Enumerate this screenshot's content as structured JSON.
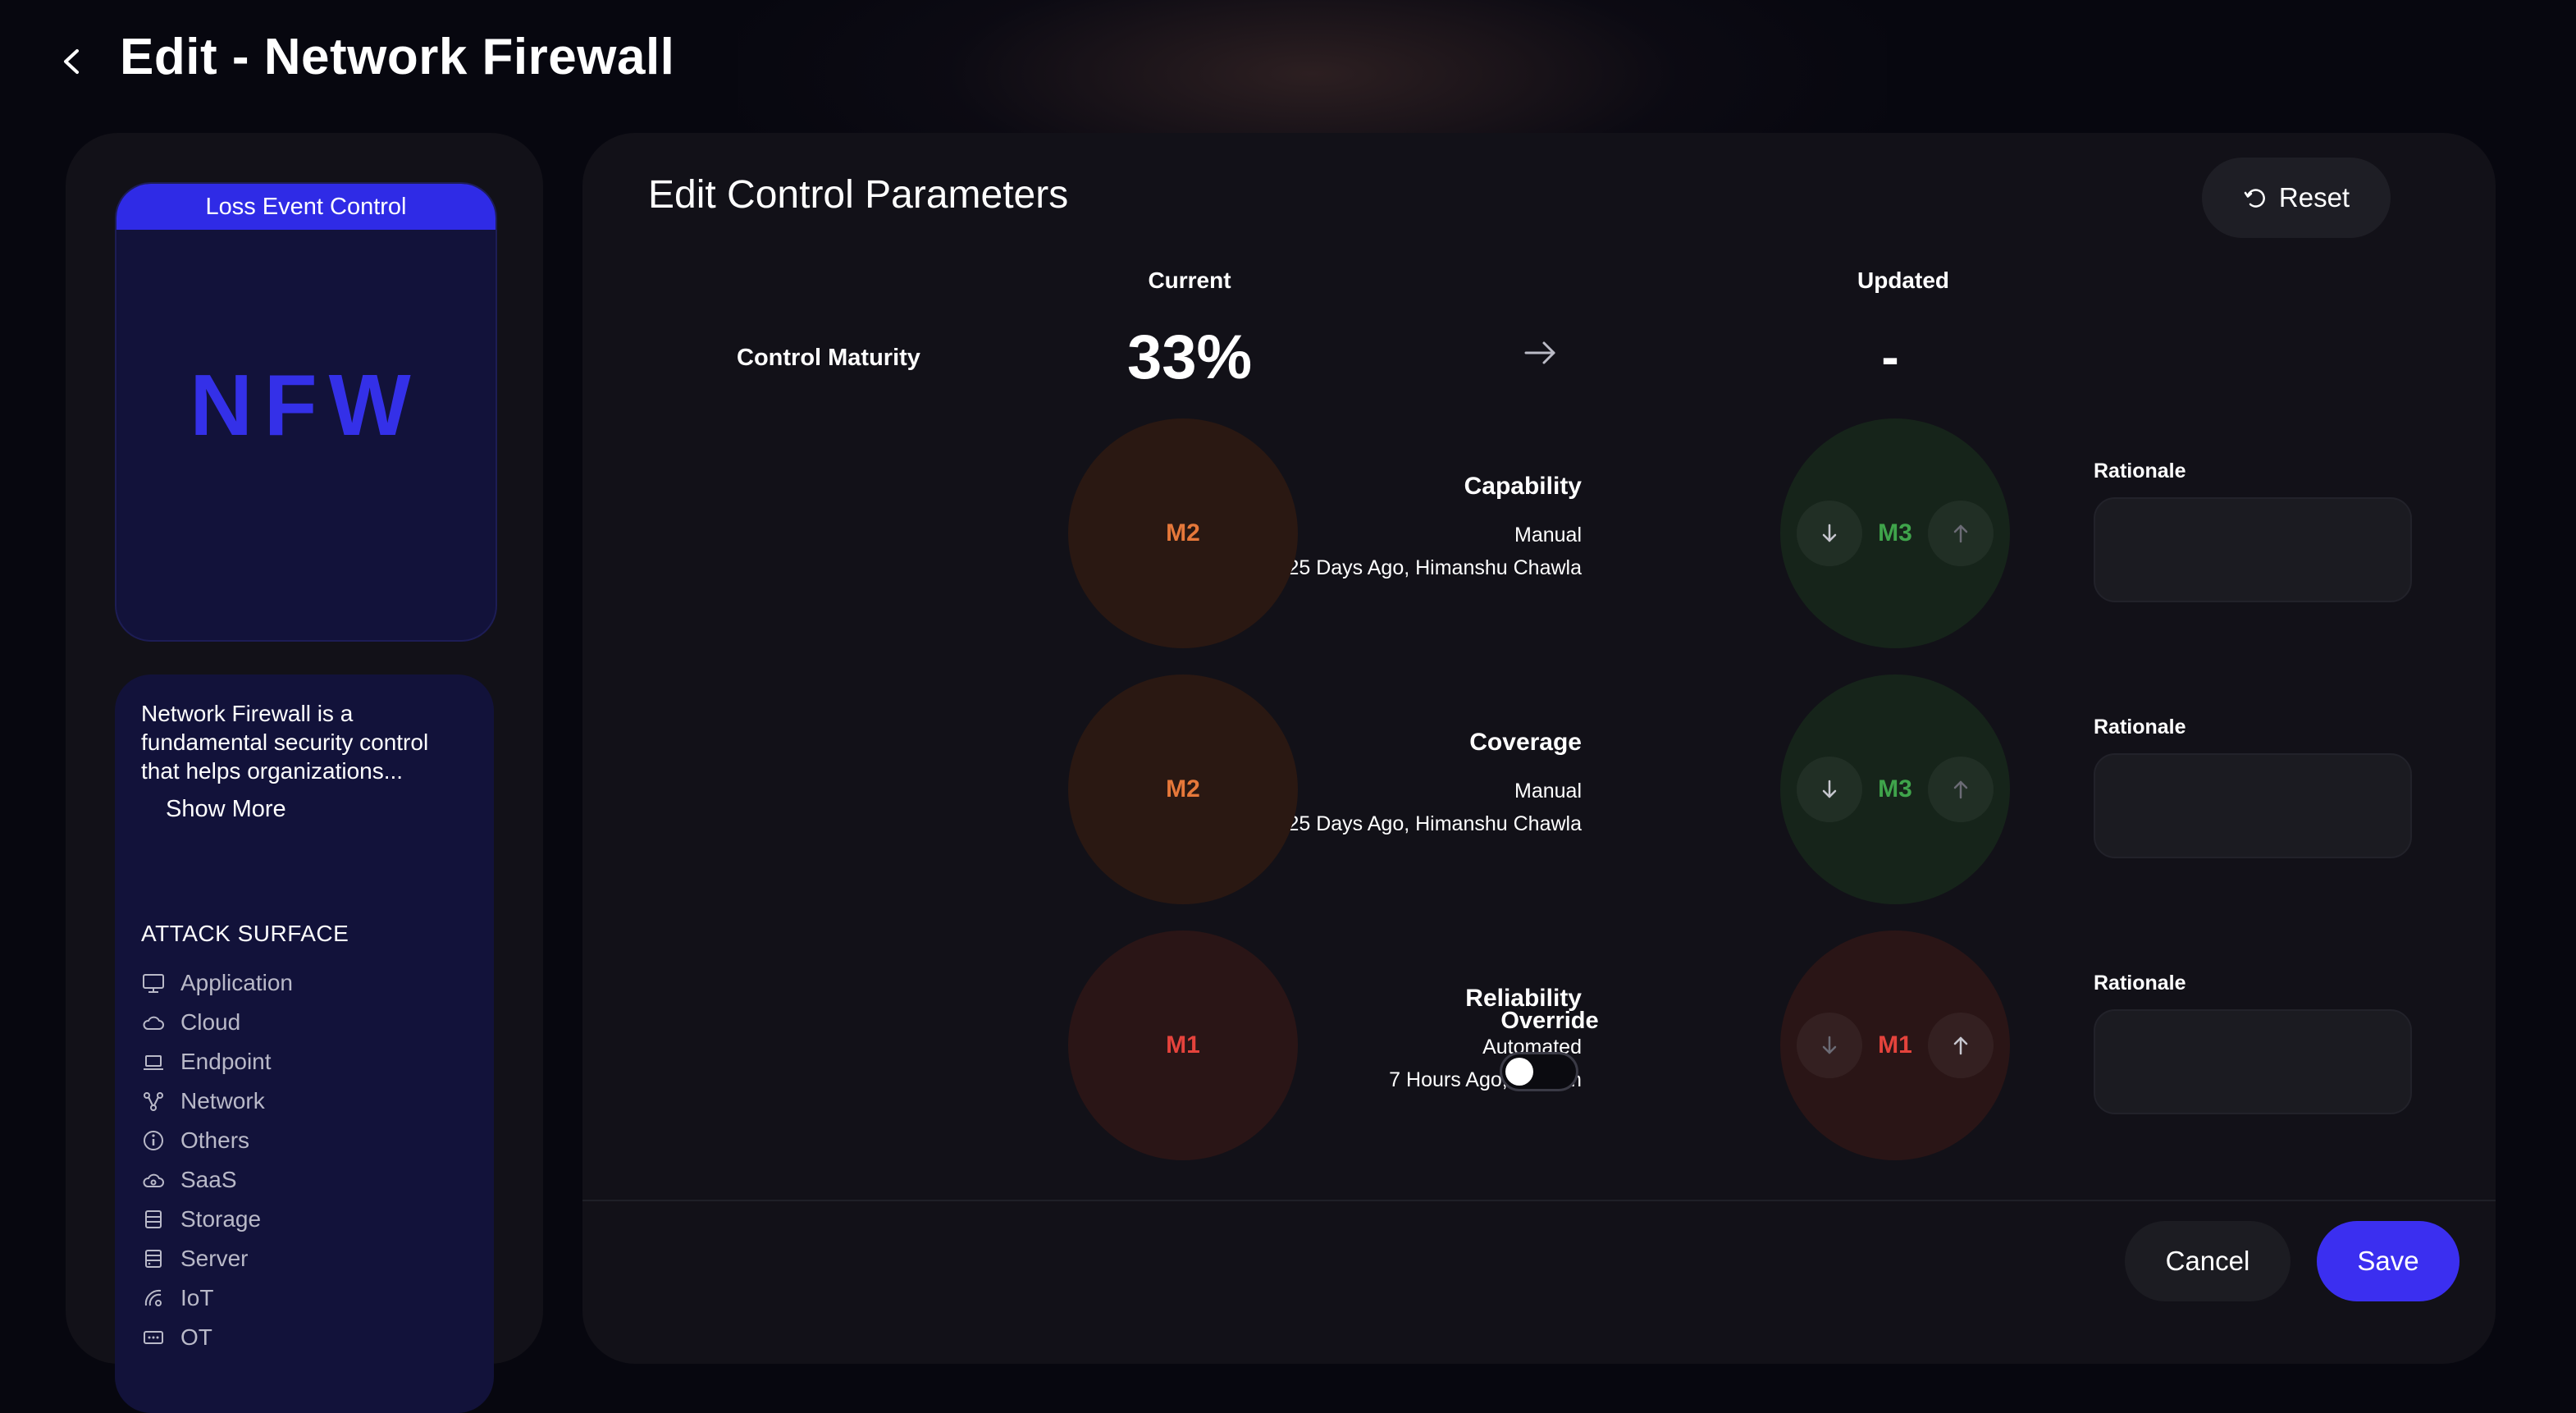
{
  "header": {
    "back_icon": "chevron-left-icon",
    "title": "Edit - Network Firewall"
  },
  "control": {
    "banner": "Loss Event Control",
    "abbreviation": "NFW",
    "description": "Network Firewall is a fundamental security control that helps organizations...",
    "show_more": "Show More",
    "attack_surface_heading": "ATTACK SURFACE",
    "attack_surface": [
      {
        "label": "Application",
        "icon": "monitor-icon"
      },
      {
        "label": "Cloud",
        "icon": "cloud-icon"
      },
      {
        "label": "Endpoint",
        "icon": "laptop-icon"
      },
      {
        "label": "Network",
        "icon": "network-icon"
      },
      {
        "label": "Others",
        "icon": "info-icon"
      },
      {
        "label": "SaaS",
        "icon": "saas-cloud-icon"
      },
      {
        "label": "Storage",
        "icon": "storage-icon"
      },
      {
        "label": "Server",
        "icon": "server-icon"
      },
      {
        "label": "IoT",
        "icon": "iot-icon"
      },
      {
        "label": "OT",
        "icon": "ot-icon"
      }
    ]
  },
  "editor": {
    "title": "Edit Control Parameters",
    "reset_label": "Reset",
    "col_current": "Current",
    "col_updated": "Updated",
    "maturity": {
      "label": "Control Maturity",
      "current": "33%",
      "updated": "-"
    },
    "rationale_label": "Rationale",
    "override_label": "Override",
    "override_on": false,
    "parameters": [
      {
        "name": "Capability",
        "mode": "Manual",
        "meta": "25 Days Ago, Himanshu Chawla",
        "current": "M2",
        "updated": "M3"
      },
      {
        "name": "Coverage",
        "mode": "Manual",
        "meta": "25 Days Ago, Himanshu Chawla",
        "current": "M2",
        "updated": "M3"
      },
      {
        "name": "Reliability",
        "mode": "Automated",
        "meta": "7 Hours Ago, System",
        "current": "M1",
        "updated": "M1"
      }
    ],
    "cancel_label": "Cancel",
    "save_label": "Save"
  },
  "colors": {
    "accent": "#3b2ff0",
    "m1": "#e5433c",
    "m2": "#e6783a",
    "m3": "#3fa44b"
  }
}
